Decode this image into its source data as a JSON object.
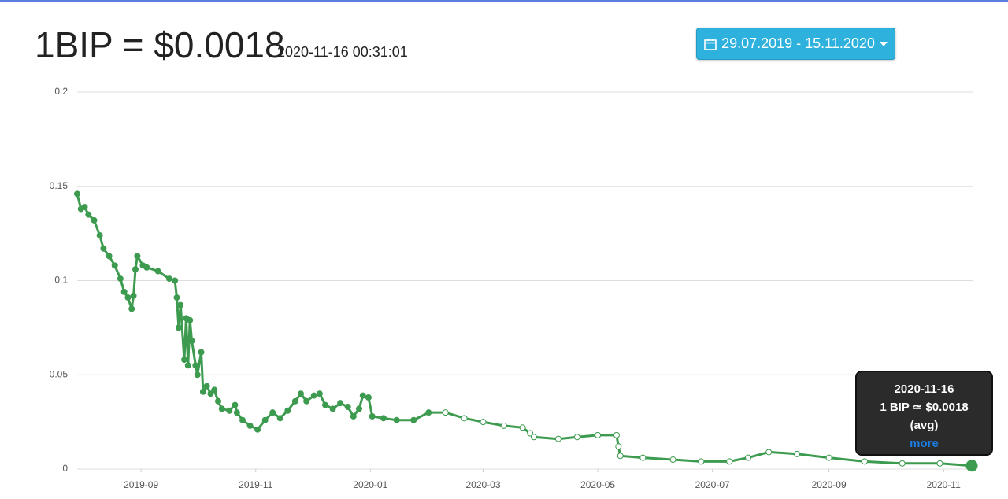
{
  "header": {
    "price": "1BIP = $0.0018",
    "timestamp": "2020-11-16 00:31:01",
    "date_range": "29.07.2019 - 15.11.2020"
  },
  "tooltip": {
    "date": "2020-11-16",
    "text": "1 BIP ≃ $0.0018",
    "note": "(avg)",
    "link": "more"
  },
  "chart_data": {
    "type": "line",
    "color": "#3d9b4f",
    "grid": true,
    "xlim": [
      "2019-07-29",
      "2020-11-16"
    ],
    "xticks": [
      {
        "value": "2019-09-01",
        "label": "2019-09"
      },
      {
        "value": "2019-11-01",
        "label": "2019-11"
      },
      {
        "value": "2020-01-01",
        "label": "2020-01"
      },
      {
        "value": "2020-03-01",
        "label": "2020-03"
      },
      {
        "value": "2020-05-01",
        "label": "2020-05"
      },
      {
        "value": "2020-07-01",
        "label": "2020-07"
      },
      {
        "value": "2020-09-01",
        "label": "2020-09"
      },
      {
        "value": "2020-11-01",
        "label": "2020-11"
      }
    ],
    "ylim": [
      0,
      0.2
    ],
    "yticks": [
      0,
      0.05,
      0.1,
      0.15,
      0.2
    ],
    "x": [
      "2019-07-29",
      "2019-07-31",
      "2019-08-02",
      "2019-08-04",
      "2019-08-07",
      "2019-08-10",
      "2019-08-12",
      "2019-08-15",
      "2019-08-18",
      "2019-08-21",
      "2019-08-23",
      "2019-08-25",
      "2019-08-27",
      "2019-08-28",
      "2019-08-29",
      "2019-08-30",
      "2019-09-02",
      "2019-09-04",
      "2019-09-10",
      "2019-09-16",
      "2019-09-19",
      "2019-09-20",
      "2019-09-21",
      "2019-09-22",
      "2019-09-24",
      "2019-09-25",
      "2019-09-26",
      "2019-09-27",
      "2019-09-28",
      "2019-09-30",
      "2019-10-01",
      "2019-10-03",
      "2019-10-04",
      "2019-10-06",
      "2019-10-08",
      "2019-10-10",
      "2019-10-12",
      "2019-10-14",
      "2019-10-18",
      "2019-10-21",
      "2019-10-22",
      "2019-10-25",
      "2019-10-29",
      "2019-11-02",
      "2019-11-06",
      "2019-11-10",
      "2019-11-14",
      "2019-11-18",
      "2019-11-22",
      "2019-11-25",
      "2019-11-28",
      "2019-12-02",
      "2019-12-05",
      "2019-12-08",
      "2019-12-12",
      "2019-12-16",
      "2019-12-20",
      "2019-12-23",
      "2019-12-26",
      "2019-12-28",
      "2019-12-31",
      "2020-01-02",
      "2020-01-08",
      "2020-01-15",
      "2020-01-24",
      "2020-02-01",
      "2020-02-10",
      "2020-02-20",
      "2020-03-01",
      "2020-03-12",
      "2020-03-22",
      "2020-03-26",
      "2020-03-28",
      "2020-04-10",
      "2020-04-20",
      "2020-05-01",
      "2020-05-11",
      "2020-05-12",
      "2020-05-13",
      "2020-05-25",
      "2020-06-10",
      "2020-06-25",
      "2020-07-10",
      "2020-07-20",
      "2020-07-31",
      "2020-08-15",
      "2020-09-01",
      "2020-09-20",
      "2020-10-10",
      "2020-10-30",
      "2020-11-16"
    ],
    "values": [
      0.146,
      0.138,
      0.139,
      0.135,
      0.132,
      0.124,
      0.117,
      0.113,
      0.108,
      0.101,
      0.094,
      0.091,
      0.085,
      0.092,
      0.106,
      0.113,
      0.108,
      0.107,
      0.105,
      0.101,
      0.1,
      0.091,
      0.075,
      0.087,
      0.058,
      0.08,
      0.055,
      0.079,
      0.068,
      0.055,
      0.05,
      0.062,
      0.041,
      0.044,
      0.04,
      0.042,
      0.036,
      0.032,
      0.031,
      0.034,
      0.03,
      0.026,
      0.023,
      0.021,
      0.026,
      0.03,
      0.027,
      0.031,
      0.036,
      0.04,
      0.036,
      0.039,
      0.04,
      0.034,
      0.032,
      0.035,
      0.033,
      0.028,
      0.032,
      0.039,
      0.038,
      0.028,
      0.027,
      0.026,
      0.026,
      0.03,
      0.03,
      0.027,
      0.025,
      0.023,
      0.022,
      0.019,
      0.017,
      0.016,
      0.017,
      0.018,
      0.018,
      0.012,
      0.007,
      0.006,
      0.005,
      0.004,
      0.004,
      0.006,
      0.009,
      0.008,
      0.006,
      0.004,
      0.003,
      0.003,
      0.0018
    ]
  }
}
